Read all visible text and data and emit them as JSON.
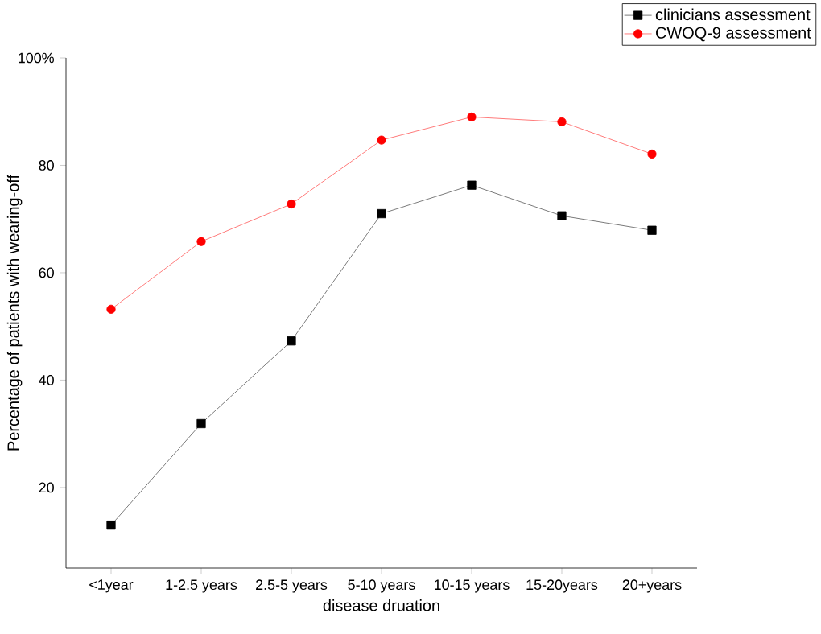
{
  "chart_data": {
    "type": "line",
    "xlabel": "disease druation",
    "ylabel": "Percentage of patients with wearing-off",
    "categories": [
      "<1year",
      "1-2.5 years",
      "2.5-5 years",
      "5-10 years",
      "10-15 years",
      "15-20years",
      "20+years"
    ],
    "ylim": [
      5,
      100
    ],
    "yticks": [
      20,
      40,
      60,
      80,
      {
        "value": 100,
        "label": "100%"
      }
    ],
    "legend": "top right",
    "grid": false,
    "line_style": "solid",
    "series": [
      {
        "name": "clinicians assessment",
        "color": "#000000",
        "marker": "square",
        "values": [
          13.0,
          31.9,
          47.3,
          71.0,
          76.3,
          70.6,
          67.9
        ]
      },
      {
        "name": "CWOQ-9 assessment",
        "color": "#ff0000",
        "marker": "circle",
        "values": [
          53.2,
          65.8,
          72.8,
          84.7,
          89.0,
          88.1,
          82.1
        ]
      }
    ]
  }
}
